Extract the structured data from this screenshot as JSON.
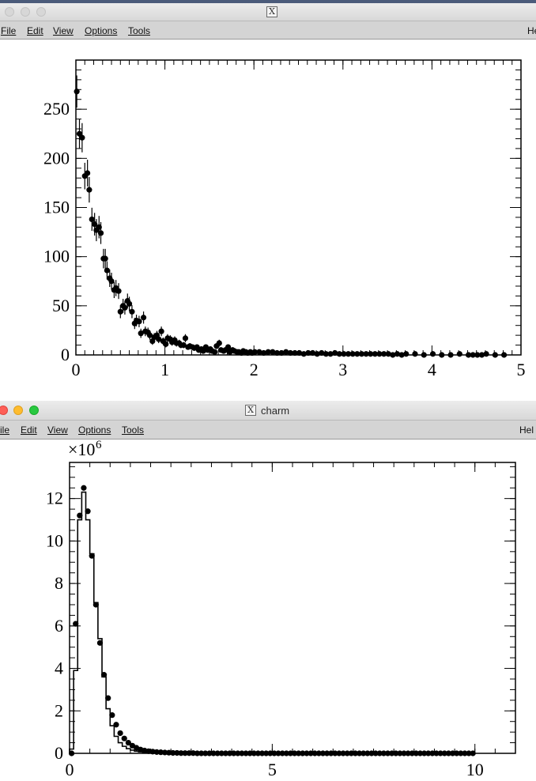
{
  "windows": [
    {
      "title": "",
      "menu": {
        "items": [
          "File",
          "Edit",
          "View",
          "Options",
          "Tools"
        ],
        "help": "He"
      },
      "chart_data": {
        "type": "scatter",
        "title": "",
        "xlabel": "",
        "ylabel": "",
        "xlim": [
          0,
          5
        ],
        "ylim": [
          0,
          300
        ],
        "x_ticks": [
          0,
          1,
          2,
          3,
          4,
          5
        ],
        "y_ticks": [
          0,
          50,
          100,
          150,
          200,
          250
        ],
        "x_tick_labels": [
          "0",
          "1",
          "2",
          "3",
          "4",
          "5"
        ],
        "y_tick_labels": [
          "0",
          "50",
          "100",
          "150",
          "200",
          "250"
        ],
        "grid": false,
        "error_bars": true,
        "points": [
          [
            0.01,
            268
          ],
          [
            0.04,
            225
          ],
          [
            0.07,
            221
          ],
          [
            0.1,
            182
          ],
          [
            0.13,
            185
          ],
          [
            0.15,
            168
          ],
          [
            0.18,
            138
          ],
          [
            0.21,
            133
          ],
          [
            0.23,
            127
          ],
          [
            0.26,
            130
          ],
          [
            0.28,
            124
          ],
          [
            0.31,
            98
          ],
          [
            0.33,
            98
          ],
          [
            0.35,
            86
          ],
          [
            0.38,
            78
          ],
          [
            0.4,
            75
          ],
          [
            0.43,
            66
          ],
          [
            0.45,
            68
          ],
          [
            0.48,
            65
          ],
          [
            0.5,
            44
          ],
          [
            0.53,
            50
          ],
          [
            0.55,
            48
          ],
          [
            0.58,
            55
          ],
          [
            0.6,
            52
          ],
          [
            0.63,
            44
          ],
          [
            0.66,
            32
          ],
          [
            0.68,
            35
          ],
          [
            0.71,
            34
          ],
          [
            0.73,
            22
          ],
          [
            0.76,
            38
          ],
          [
            0.78,
            24
          ],
          [
            0.81,
            23
          ],
          [
            0.83,
            20
          ],
          [
            0.86,
            14
          ],
          [
            0.88,
            18
          ],
          [
            0.91,
            20
          ],
          [
            0.93,
            16
          ],
          [
            0.96,
            24
          ],
          [
            0.98,
            14
          ],
          [
            1.01,
            11
          ],
          [
            1.03,
            17
          ],
          [
            1.06,
            16
          ],
          [
            1.08,
            13
          ],
          [
            1.11,
            15
          ],
          [
            1.13,
            12
          ],
          [
            1.16,
            12
          ],
          [
            1.18,
            10
          ],
          [
            1.21,
            10
          ],
          [
            1.23,
            17
          ],
          [
            1.26,
            8
          ],
          [
            1.28,
            9
          ],
          [
            1.31,
            8
          ],
          [
            1.33,
            7
          ],
          [
            1.36,
            8
          ],
          [
            1.38,
            5
          ],
          [
            1.41,
            6
          ],
          [
            1.43,
            4
          ],
          [
            1.46,
            8
          ],
          [
            1.48,
            5
          ],
          [
            1.51,
            6
          ],
          [
            1.53,
            4
          ],
          [
            1.56,
            3
          ],
          [
            1.58,
            9
          ],
          [
            1.61,
            12
          ],
          [
            1.63,
            5
          ],
          [
            1.66,
            4
          ],
          [
            1.68,
            5
          ],
          [
            1.71,
            8
          ],
          [
            1.73,
            3
          ],
          [
            1.76,
            5
          ],
          [
            1.78,
            4
          ],
          [
            1.81,
            3
          ],
          [
            1.83,
            3
          ],
          [
            1.86,
            2
          ],
          [
            1.88,
            4
          ],
          [
            1.91,
            3
          ],
          [
            1.93,
            2
          ],
          [
            1.96,
            3
          ],
          [
            1.98,
            2
          ],
          [
            2.01,
            3
          ],
          [
            2.06,
            3
          ],
          [
            2.11,
            2
          ],
          [
            2.16,
            3
          ],
          [
            2.21,
            3
          ],
          [
            2.26,
            2
          ],
          [
            2.31,
            2
          ],
          [
            2.36,
            3
          ],
          [
            2.41,
            2
          ],
          [
            2.46,
            2
          ],
          [
            2.51,
            2
          ],
          [
            2.56,
            1
          ],
          [
            2.61,
            2
          ],
          [
            2.66,
            2
          ],
          [
            2.71,
            1
          ],
          [
            2.76,
            2
          ],
          [
            2.81,
            1
          ],
          [
            2.86,
            1
          ],
          [
            2.91,
            2
          ],
          [
            2.96,
            1
          ],
          [
            3.01,
            1
          ],
          [
            3.06,
            1
          ],
          [
            3.11,
            1
          ],
          [
            3.16,
            1
          ],
          [
            3.21,
            1
          ],
          [
            3.26,
            1
          ],
          [
            3.31,
            1
          ],
          [
            3.36,
            1
          ],
          [
            3.41,
            1
          ],
          [
            3.46,
            1
          ],
          [
            3.51,
            1
          ],
          [
            3.56,
            0
          ],
          [
            3.61,
            1
          ],
          [
            3.66,
            0
          ],
          [
            3.71,
            1
          ],
          [
            3.81,
            1
          ],
          [
            3.91,
            0
          ],
          [
            4.01,
            1
          ],
          [
            4.11,
            0
          ],
          [
            4.21,
            0
          ],
          [
            4.31,
            1
          ],
          [
            4.41,
            0
          ],
          [
            4.46,
            0
          ],
          [
            4.51,
            0
          ],
          [
            4.56,
            0
          ],
          [
            4.61,
            1
          ],
          [
            4.71,
            0
          ],
          [
            4.81,
            0
          ]
        ]
      }
    },
    {
      "title": "charm",
      "menu": {
        "items": [
          "ile",
          "Edit",
          "View",
          "Options",
          "Tools"
        ],
        "help": "Hel"
      },
      "chart_data": {
        "type": "line",
        "title": "",
        "xlabel": "",
        "ylabel": "",
        "xlim": [
          0,
          11
        ],
        "ylim": [
          0,
          13.7
        ],
        "y_multiplier": "×10",
        "y_multiplier_exp": "6",
        "x_ticks": [
          0,
          5,
          10
        ],
        "y_ticks": [
          0,
          2,
          4,
          6,
          8,
          10,
          12
        ],
        "x_tick_labels": [
          "0",
          "5",
          "10"
        ],
        "y_tick_labels": [
          "0",
          "2",
          "4",
          "6",
          "8",
          "10",
          "12"
        ],
        "grid": false,
        "bin_width": 0.1,
        "histogram_values": [
          0.2,
          3.9,
          11.0,
          12.3,
          11.0,
          9.4,
          7.1,
          5.4,
          3.6,
          2.1,
          1.3,
          0.8,
          0.5,
          0.33,
          0.22,
          0.15,
          0.1,
          0.07,
          0.05,
          0.035,
          0.025,
          0.018,
          0.013,
          0.01,
          0.008,
          0.006,
          0.005,
          0.004,
          0.003,
          0.003,
          0.002
        ],
        "points": [
          [
            0.05,
            0.0
          ],
          [
            0.15,
            6.1
          ],
          [
            0.25,
            11.2
          ],
          [
            0.35,
            12.5
          ],
          [
            0.45,
            11.4
          ],
          [
            0.55,
            9.3
          ],
          [
            0.65,
            7.0
          ],
          [
            0.75,
            5.2
          ],
          [
            0.85,
            3.7
          ],
          [
            0.95,
            2.6
          ],
          [
            1.05,
            1.8
          ],
          [
            1.15,
            1.35
          ],
          [
            1.25,
            0.95
          ],
          [
            1.35,
            0.7
          ],
          [
            1.45,
            0.5
          ],
          [
            1.55,
            0.36
          ],
          [
            1.65,
            0.26
          ],
          [
            1.75,
            0.18
          ],
          [
            1.85,
            0.13
          ],
          [
            1.95,
            0.1
          ],
          [
            2.05,
            0.08
          ],
          [
            2.15,
            0.06
          ],
          [
            2.25,
            0.05
          ],
          [
            2.35,
            0.04
          ],
          [
            2.45,
            0.03
          ],
          [
            2.55,
            0.02
          ],
          [
            2.65,
            0.02
          ],
          [
            2.75,
            0.01
          ],
          [
            2.85,
            0.01
          ],
          [
            2.95,
            0.01
          ],
          [
            3.05,
            0.01
          ],
          [
            3.15,
            0.0
          ],
          [
            3.25,
            0.0
          ],
          [
            3.35,
            0.0
          ],
          [
            3.45,
            0.0
          ],
          [
            3.55,
            0.0
          ],
          [
            3.65,
            0.0
          ],
          [
            3.75,
            0.0
          ],
          [
            3.85,
            0.0
          ],
          [
            3.95,
            0.0
          ],
          [
            4.05,
            0.0
          ],
          [
            4.15,
            0.0
          ],
          [
            4.25,
            0.0
          ],
          [
            4.35,
            0.0
          ],
          [
            4.45,
            0.0
          ],
          [
            4.55,
            0.0
          ],
          [
            4.65,
            0.0
          ],
          [
            4.75,
            0.0
          ],
          [
            4.85,
            0.0
          ],
          [
            4.95,
            0.0
          ],
          [
            5.05,
            0.0
          ],
          [
            5.15,
            0.0
          ],
          [
            5.25,
            0.0
          ],
          [
            5.35,
            0.0
          ],
          [
            5.45,
            0.0
          ],
          [
            5.55,
            0.0
          ],
          [
            5.65,
            0.0
          ],
          [
            5.75,
            0.0
          ],
          [
            5.85,
            0.0
          ],
          [
            5.95,
            0.0
          ],
          [
            6.05,
            0.0
          ],
          [
            6.15,
            0.0
          ],
          [
            6.25,
            0.0
          ],
          [
            6.35,
            0.0
          ],
          [
            6.45,
            0.0
          ],
          [
            6.55,
            0.0
          ],
          [
            6.65,
            0.0
          ],
          [
            6.75,
            0.0
          ],
          [
            6.85,
            0.0
          ],
          [
            6.95,
            0.0
          ],
          [
            7.05,
            0.0
          ],
          [
            7.15,
            0.0
          ],
          [
            7.25,
            0.0
          ],
          [
            7.35,
            0.0
          ],
          [
            7.45,
            0.0
          ],
          [
            7.55,
            0.0
          ],
          [
            7.65,
            0.0
          ],
          [
            7.75,
            0.0
          ],
          [
            7.85,
            0.0
          ],
          [
            7.95,
            0.0
          ],
          [
            8.05,
            0.0
          ],
          [
            8.15,
            0.0
          ],
          [
            8.25,
            0.0
          ],
          [
            8.35,
            0.0
          ],
          [
            8.45,
            0.0
          ],
          [
            8.55,
            0.0
          ],
          [
            8.65,
            0.0
          ],
          [
            8.75,
            0.0
          ],
          [
            8.85,
            0.0
          ],
          [
            8.95,
            0.0
          ],
          [
            9.05,
            0.0
          ],
          [
            9.15,
            0.0
          ],
          [
            9.25,
            0.0
          ],
          [
            9.35,
            0.0
          ],
          [
            9.45,
            0.0
          ],
          [
            9.55,
            0.0
          ],
          [
            9.65,
            0.0
          ],
          [
            9.75,
            0.0
          ],
          [
            9.85,
            0.0
          ],
          [
            9.95,
            0.0
          ]
        ]
      }
    }
  ]
}
